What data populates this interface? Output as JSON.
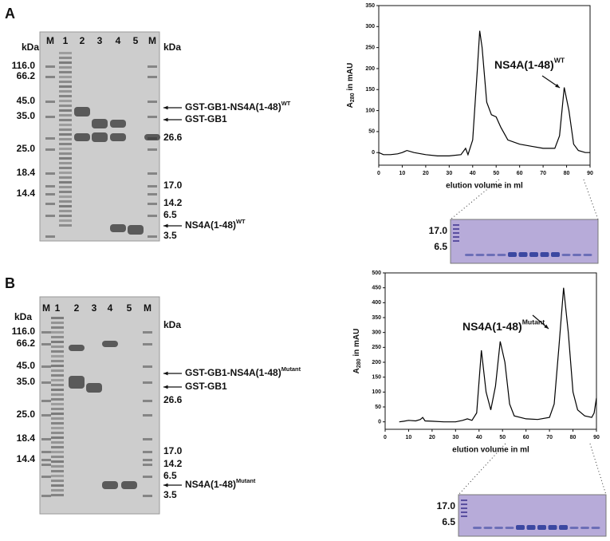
{
  "panels": [
    {
      "letter": "A",
      "lanes": [
        "M",
        "1",
        "2",
        "3",
        "4",
        "5",
        "M"
      ],
      "unit_left": "kDa",
      "unit_right": "kDa",
      "left_markers": [
        "116.0",
        "66.2",
        "45.0",
        "35.0",
        "25.0",
        "18.4",
        "14.4"
      ],
      "right_markers": [
        "26.6",
        "17.0",
        "14.2",
        "6.5",
        "3.5"
      ],
      "annotations": [
        {
          "text": "GST-GB1-NS4A(1-48)",
          "sup": "WT"
        },
        {
          "text": "GST-GB1"
        },
        {
          "text": "NS4A(1-48)",
          "sup": "WT"
        }
      ],
      "inset_markers": [
        "17.0",
        "6.5"
      ]
    },
    {
      "letter": "B",
      "lanes": [
        "M",
        "1",
        "2",
        "3",
        "4",
        "5",
        "M"
      ],
      "unit_left": "kDa",
      "unit_right": "kDa",
      "left_markers": [
        "116.0",
        "66.2",
        "45.0",
        "35.0",
        "25.0",
        "18.4",
        "14.4"
      ],
      "right_markers": [
        "26.6",
        "17.0",
        "14.2",
        "6.5",
        "3.5"
      ],
      "annotations": [
        {
          "text": "GST-GB1-NS4A(1-48)",
          "sup": "Mutant"
        },
        {
          "text": "GST-GB1"
        },
        {
          "text": "NS4A(1-48)",
          "sup": "Mutant"
        }
      ],
      "inset_markers": [
        "17.0",
        "6.5"
      ]
    }
  ],
  "chart_data": [
    {
      "type": "line",
      "x_label": "elution volume in ml",
      "y_label": {
        "main": "A",
        "sub": "280",
        "tail": " in mAU"
      },
      "annotation": {
        "text": "NS4A(1-48)",
        "sup": "WT"
      },
      "color": "#000000",
      "x": [
        0,
        2,
        5,
        8,
        10,
        12,
        15,
        20,
        25,
        30,
        35,
        37,
        38,
        40,
        42,
        43,
        44,
        46,
        48,
        50,
        52,
        55,
        60,
        65,
        70,
        75,
        77,
        79,
        81,
        83,
        85,
        88,
        90
      ],
      "values": [
        0,
        -5,
        -5,
        -3,
        0,
        5,
        0,
        -5,
        -8,
        -8,
        -5,
        10,
        -5,
        30,
        200,
        290,
        250,
        120,
        90,
        85,
        60,
        30,
        20,
        15,
        10,
        10,
        40,
        155,
        100,
        20,
        5,
        0,
        0
      ],
      "xlim": [
        0,
        90
      ],
      "xticks": [
        0,
        10,
        20,
        30,
        40,
        50,
        60,
        70,
        80,
        90
      ],
      "ylim": [
        -30,
        350
      ],
      "yticks": [
        0,
        50,
        100,
        150,
        200,
        250,
        300,
        350
      ]
    },
    {
      "type": "line",
      "x_label": "elution volume in ml",
      "y_label": {
        "main": "A",
        "sub": "280",
        "tail": " in mAU"
      },
      "annotation": {
        "text": "NS4A(1-48)",
        "sup": "Mutant"
      },
      "color": "#000000",
      "x": [
        6,
        8,
        10,
        13,
        15,
        16,
        17,
        20,
        25,
        30,
        33,
        35,
        37,
        39,
        41,
        43,
        45,
        47,
        49,
        51,
        53,
        55,
        60,
        65,
        70,
        72,
        74,
        76,
        78,
        80,
        82,
        85,
        88,
        89,
        90
      ],
      "values": [
        0,
        2,
        5,
        3,
        8,
        15,
        3,
        2,
        0,
        0,
        5,
        10,
        5,
        30,
        240,
        100,
        40,
        120,
        270,
        200,
        60,
        20,
        10,
        8,
        15,
        60,
        250,
        450,
        300,
        100,
        40,
        20,
        15,
        30,
        80
      ],
      "xlim": [
        0,
        90
      ],
      "xticks": [
        0,
        10,
        20,
        30,
        40,
        50,
        60,
        70,
        80,
        90
      ],
      "ylim": [
        -25,
        500
      ],
      "yticks": [
        0,
        50,
        100,
        150,
        200,
        250,
        300,
        350,
        400,
        450,
        500
      ]
    }
  ]
}
